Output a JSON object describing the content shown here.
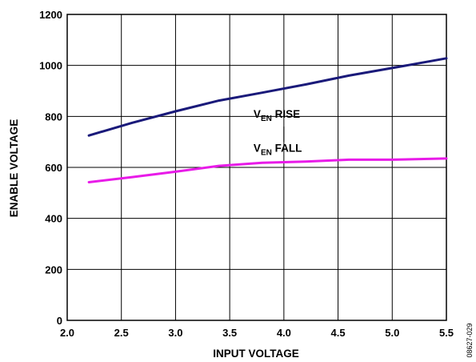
{
  "chart_data": {
    "type": "line",
    "xlabel": "INPUT VOLTAGE",
    "ylabel": "ENABLE VOLTAGE",
    "xlim": [
      2.0,
      5.5
    ],
    "ylim": [
      0,
      1200
    ],
    "x_ticks": [
      "2.0",
      "2.5",
      "3.0",
      "3.5",
      "4.0",
      "4.5",
      "5.0",
      "5.5"
    ],
    "y_ticks": [
      "0",
      "200",
      "400",
      "600",
      "800",
      "1000",
      "1200"
    ],
    "grid": true,
    "series": [
      {
        "name": "V_EN RISE",
        "label_main": "V",
        "label_sub": "EN",
        "label_rest": " RISE",
        "color": "#1a1a7a",
        "x": [
          2.2,
          2.6,
          3.0,
          3.4,
          3.8,
          4.2,
          4.6,
          5.0,
          5.5
        ],
        "y": [
          725,
          775,
          820,
          862,
          893,
          925,
          960,
          990,
          1028
        ]
      },
      {
        "name": "V_EN FALL",
        "label_main": "V",
        "label_sub": "EN",
        "label_rest": " FALL",
        "color": "#e81be8",
        "x": [
          2.2,
          2.6,
          3.0,
          3.4,
          3.8,
          4.2,
          4.6,
          5.0,
          5.5
        ],
        "y": [
          542,
          562,
          583,
          606,
          618,
          623,
          630,
          630,
          635
        ]
      }
    ]
  },
  "figure_id": "08627-029"
}
